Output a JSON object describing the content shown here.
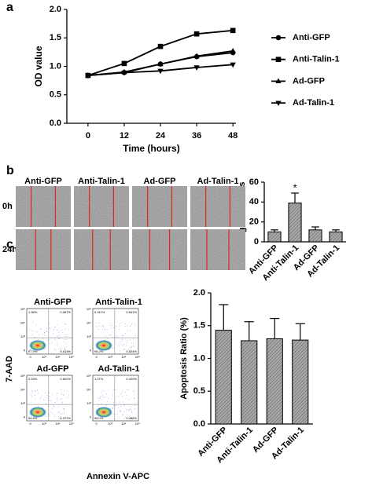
{
  "chart_data": [
    {
      "type": "line",
      "xlabel": "Time (hours)",
      "ylabel": "OD value",
      "x": [
        0,
        12,
        24,
        36,
        48
      ],
      "xlim": [
        -7,
        49
      ],
      "xticks": [
        0,
        12,
        24,
        36,
        48
      ],
      "ylim": [
        0,
        2
      ],
      "yticks": [
        {
          "value": 0,
          "label": "0.0"
        },
        {
          "value": 0.5,
          "label": "0.5"
        },
        {
          "value": 1,
          "label": "1.0"
        },
        {
          "value": 1.5,
          "label": "1.5"
        },
        {
          "value": 2,
          "label": "2.0"
        }
      ],
      "legend": "right",
      "series": [
        {
          "name": "Anti-GFP",
          "color": "#000000",
          "marker": "circle",
          "values": [
            0.84,
            0.89,
            1.04,
            1.17,
            1.24
          ]
        },
        {
          "name": "Anti-Talin-1",
          "color": "#000000",
          "marker": "square",
          "values": [
            0.84,
            1.05,
            1.35,
            1.57,
            1.63
          ]
        },
        {
          "name": "Ad-GFP",
          "color": "#000000",
          "marker": "triangle-up",
          "values": [
            0.84,
            0.9,
            1.04,
            1.18,
            1.27
          ]
        },
        {
          "name": "Ad-Talin-1",
          "color": "#000000",
          "marker": "triangle-down",
          "values": [
            0.84,
            0.89,
            0.92,
            0.98,
            1.03
          ]
        }
      ]
    },
    {
      "type": "bar",
      "ylabel": "Migration cells",
      "categories": [
        "Anti-GFP",
        "Anti-Talin-1",
        "Ad-GFP",
        "Ad-Talin-1"
      ],
      "values": [
        10,
        39,
        12,
        10
      ],
      "errors": [
        2,
        10,
        3,
        2
      ],
      "annotation": "*",
      "ylim": [
        0,
        60
      ],
      "yticks": [
        0,
        20,
        40,
        60
      ],
      "color": "#8c8c8c"
    },
    {
      "type": "bar",
      "ylabel": "Apoptosis Ratio (%)",
      "categories": [
        "Anti-GFP",
        "Anti-Talin-1",
        "Ad-GFP",
        "Ad-Talin-1"
      ],
      "values": [
        1.43,
        1.27,
        1.3,
        1.28
      ],
      "errors": [
        0.39,
        0.29,
        0.31,
        0.25
      ],
      "ylim": [
        0,
        2
      ],
      "yticks": [
        {
          "value": 0,
          "label": "0.0"
        },
        {
          "value": 0.5,
          "label": "0.5"
        },
        {
          "value": 1,
          "label": "1.0"
        },
        {
          "value": 1.5,
          "label": "1.5"
        },
        {
          "value": 2,
          "label": "2.0"
        }
      ],
      "color": "#8c8c8c"
    }
  ],
  "panel_labels": [
    "a",
    "b",
    "c"
  ],
  "wound_images": {
    "columns": [
      "Anti-GFP",
      "Anti-Talin-1",
      "Ad-GFP",
      "Ad-Talin-1"
    ],
    "rows": [
      "0h",
      "24h"
    ]
  },
  "flow_plots": {
    "ylabel": "7-AAD",
    "xlabel": "Annexin V-APC",
    "axis_ticks": [
      "0",
      "10³",
      "10⁴",
      "10⁵"
    ],
    "plots": [
      {
        "title": "Anti-GFP",
        "quadrants": [
          "1.36%",
          "0.067%",
          "97.9%",
          "0.614%"
        ]
      },
      {
        "title": "Anti-Talin-1",
        "quadrants": [
          "0.311%",
          "0.641%",
          "98.2%",
          "0.824%"
        ]
      },
      {
        "title": "Ad-GFP",
        "quadrants": [
          "2.53%",
          "0.602%",
          "96.5%",
          "0.372%"
        ]
      },
      {
        "title": "Ad-Talin-1",
        "quadrants": [
          "1.07%",
          "0.420%",
          "98.0%",
          "0.488%"
        ]
      }
    ]
  }
}
